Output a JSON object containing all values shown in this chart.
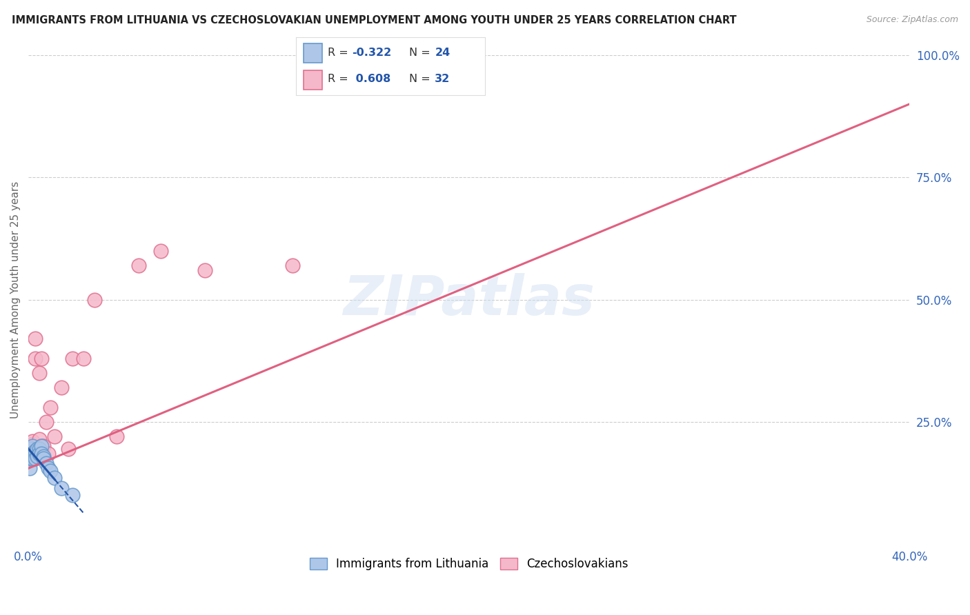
{
  "title": "IMMIGRANTS FROM LITHUANIA VS CZECHOSLOVAKIAN UNEMPLOYMENT AMONG YOUTH UNDER 25 YEARS CORRELATION CHART",
  "source": "Source: ZipAtlas.com",
  "ylabel": "Unemployment Among Youth under 25 years",
  "xlim": [
    0.0,
    0.4
  ],
  "ylim": [
    0.0,
    1.0
  ],
  "xticks": [
    0.0,
    0.1,
    0.2,
    0.3,
    0.4
  ],
  "xtick_labels": [
    "0.0%",
    "",
    "",
    "",
    "40.0%"
  ],
  "yticks_right": [
    0.0,
    0.25,
    0.5,
    0.75,
    1.0
  ],
  "ytick_labels_right": [
    "",
    "25.0%",
    "50.0%",
    "75.0%",
    "100.0%"
  ],
  "lithuania": {
    "name": "Immigrants from Lithuania",
    "color": "#aec6e8",
    "edge_color": "#6699cc",
    "trend_color": "#2255aa",
    "R": -0.322,
    "N": 24,
    "x": [
      0.0005,
      0.001,
      0.001,
      0.0015,
      0.002,
      0.002,
      0.002,
      0.003,
      0.003,
      0.003,
      0.004,
      0.004,
      0.005,
      0.005,
      0.006,
      0.006,
      0.007,
      0.007,
      0.008,
      0.009,
      0.01,
      0.012,
      0.015,
      0.02
    ],
    "y": [
      0.155,
      0.175,
      0.195,
      0.18,
      0.2,
      0.185,
      0.175,
      0.19,
      0.185,
      0.175,
      0.195,
      0.18,
      0.195,
      0.185,
      0.2,
      0.185,
      0.18,
      0.175,
      0.165,
      0.155,
      0.15,
      0.135,
      0.115,
      0.1
    ],
    "trend_x0": 0.0,
    "trend_y0": 0.195,
    "trend_x1": 0.02,
    "trend_x1_solid": 0.012,
    "trend_y1": 0.09,
    "trend_x_dash_end": 0.025,
    "trend_y_dash_end": 0.065
  },
  "czech": {
    "name": "Czechoslovakians",
    "color": "#f5b8cb",
    "edge_color": "#e07090",
    "trend_color": "#e06080",
    "R": 0.608,
    "N": 32,
    "x": [
      0.0003,
      0.0005,
      0.001,
      0.001,
      0.001,
      0.002,
      0.002,
      0.002,
      0.003,
      0.003,
      0.003,
      0.004,
      0.004,
      0.005,
      0.005,
      0.006,
      0.006,
      0.007,
      0.008,
      0.009,
      0.01,
      0.012,
      0.015,
      0.018,
      0.02,
      0.025,
      0.03,
      0.04,
      0.05,
      0.06,
      0.08,
      0.12
    ],
    "y": [
      0.185,
      0.195,
      0.2,
      0.185,
      0.175,
      0.205,
      0.195,
      0.21,
      0.38,
      0.42,
      0.195,
      0.185,
      0.195,
      0.215,
      0.35,
      0.38,
      0.2,
      0.2,
      0.25,
      0.185,
      0.28,
      0.22,
      0.32,
      0.195,
      0.38,
      0.38,
      0.5,
      0.22,
      0.57,
      0.6,
      0.56,
      0.57
    ],
    "trend_x0": 0.0,
    "trend_y0": 0.155,
    "trend_x1": 0.4,
    "trend_y1": 0.9
  },
  "watermark": "ZIPatlas",
  "background_color": "#ffffff",
  "grid_color": "#cccccc"
}
